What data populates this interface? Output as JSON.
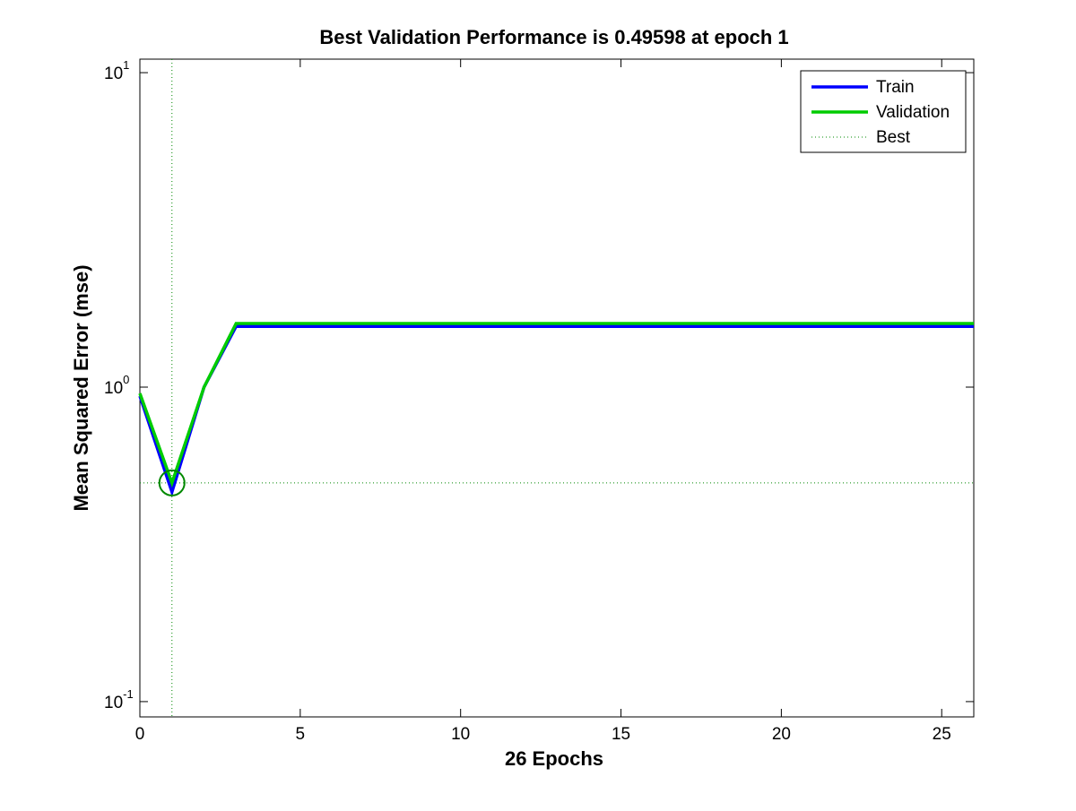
{
  "chart_data": {
    "type": "line",
    "title": "Best Validation Performance is 0.49598 at epoch 1",
    "xlabel": "26 Epochs",
    "ylabel": "Mean Squared Error  (mse)",
    "x": [
      0,
      1,
      2,
      3,
      4,
      5,
      6,
      7,
      8,
      9,
      10,
      11,
      12,
      13,
      14,
      15,
      16,
      17,
      18,
      19,
      20,
      21,
      22,
      23,
      24,
      25,
      26
    ],
    "series": [
      {
        "name": "Train",
        "color": "#0000ff",
        "values": [
          0.937,
          0.464,
          1.0,
          1.56,
          1.56,
          1.56,
          1.56,
          1.56,
          1.56,
          1.56,
          1.56,
          1.56,
          1.56,
          1.56,
          1.56,
          1.56,
          1.56,
          1.56,
          1.56,
          1.56,
          1.56,
          1.56,
          1.56,
          1.56,
          1.56,
          1.56,
          1.56
        ]
      },
      {
        "name": "Validation",
        "color": "#00cc00",
        "values": [
          0.955,
          0.49598,
          1.0,
          1.594,
          1.594,
          1.594,
          1.594,
          1.594,
          1.594,
          1.594,
          1.594,
          1.594,
          1.594,
          1.594,
          1.594,
          1.594,
          1.594,
          1.594,
          1.594,
          1.594,
          1.594,
          1.594,
          1.594,
          1.594,
          1.594,
          1.594,
          1.594
        ]
      }
    ],
    "best": {
      "name": "Best",
      "color": "#008800",
      "x": 1,
      "value": 0.49598
    },
    "xlim": [
      0,
      26
    ],
    "xticks": [
      0,
      5,
      10,
      15,
      20,
      25
    ],
    "ylim": [
      0.0894,
      11.04
    ],
    "yticks": [
      {
        "value": 0.1,
        "label": "10^-1"
      },
      {
        "value": 1,
        "label": "10^0"
      },
      {
        "value": 10,
        "label": "10^1"
      }
    ],
    "yscale": "log",
    "legend": "upper right"
  }
}
